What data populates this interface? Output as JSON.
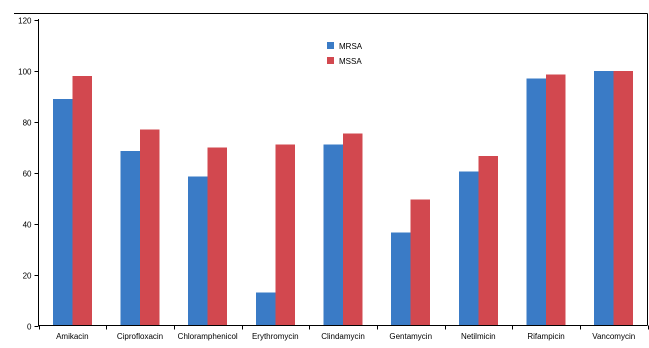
{
  "chart_data": {
    "type": "bar",
    "title": "",
    "xlabel": "",
    "ylabel": "",
    "categories": [
      "Amikacin",
      "Ciprofloxacin",
      "Chloramphenicol",
      "Erythromycin",
      "Clindamycin",
      "Gentamycin",
      "Netilmicin",
      "Rifampicin",
      "Vancomycin"
    ],
    "series": [
      {
        "name": "MRSA",
        "color": "#3a7bc6",
        "values": [
          89,
          68.5,
          58.5,
          13,
          71,
          36.5,
          60.5,
          97,
          100
        ]
      },
      {
        "name": "MSSA",
        "color": "#d2484f",
        "values": [
          98,
          77,
          70,
          71,
          75.5,
          49.5,
          66.5,
          98.5,
          100
        ]
      }
    ],
    "ylim": [
      0,
      120
    ],
    "yticks": [
      "0",
      "20",
      "40",
      "60",
      "80",
      "100",
      "120"
    ],
    "grid": false,
    "legend": "top-center"
  }
}
